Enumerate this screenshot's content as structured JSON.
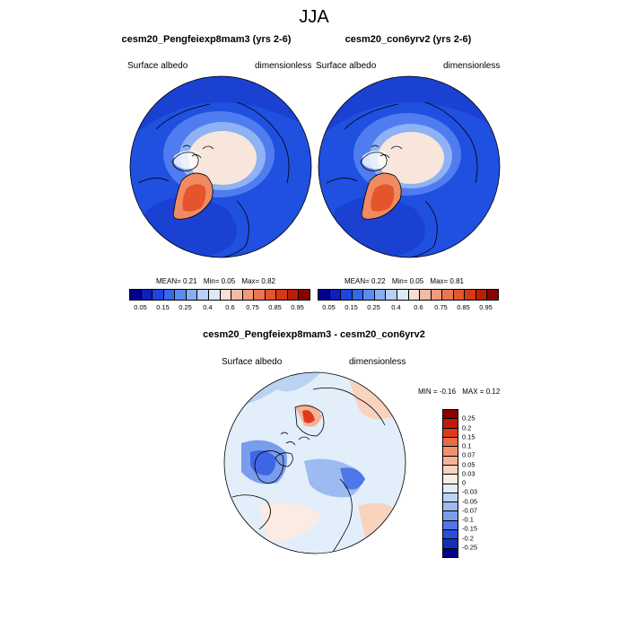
{
  "figure": {
    "title": "JJA",
    "panels": [
      {
        "title": "cesm20_Pengfeiexp8mam3 (yrs 2-6)",
        "variable": "Surface albedo",
        "units": "dimensionless",
        "stats": {
          "mean": "MEAN=   0.21",
          "min": "Min=   0.05",
          "max": "Max=   0.82"
        }
      },
      {
        "title": "cesm20_con6yrv2 (yrs 2-6)",
        "variable": "Surface albedo",
        "units": "dimensionless",
        "stats": {
          "mean": "MEAN=   0.22",
          "min": "Min=   0.05",
          "max": "Max=   0.81"
        }
      },
      {
        "title": "cesm20_Pengfeiexp8mam3 - cesm20_con6yrv2",
        "variable": "Surface albedo",
        "units": "dimensionless",
        "stats": {
          "min": "MIN =  -0.16",
          "max": "MAX =   0.12"
        }
      }
    ],
    "albedo_colorbar": {
      "labels": [
        "0.05",
        "0.15",
        "0.25",
        "0.4",
        "0.6",
        "0.75",
        "0.85",
        "0.95"
      ],
      "colors": [
        "#00008b",
        "#0d1fbf",
        "#1f45e0",
        "#3568ec",
        "#5a8cf0",
        "#86aef2",
        "#b6cff4",
        "#dde9f7",
        "#f9dfd3",
        "#f4bba4",
        "#ef9a7a",
        "#ea7651",
        "#e3552e",
        "#d53816",
        "#b81f08",
        "#8b0000"
      ]
    },
    "diff_colorbar": {
      "labels": [
        "0.25",
        "0.2",
        "0.15",
        "0.1",
        "0.07",
        "0.05",
        "0.03",
        "0",
        "-0.03",
        "-0.05",
        "-0.07",
        "-0.1",
        "-0.15",
        "-0.2",
        "-0.25"
      ],
      "colors": [
        "#8b0000",
        "#c21a0a",
        "#e03a1c",
        "#ea6a47",
        "#f0926d",
        "#f4b395",
        "#f9d3be",
        "#fcebe2",
        "#e0ecf8",
        "#bcd2f3",
        "#9dbaf1",
        "#7a9cef",
        "#4f77e8",
        "#2a4fda",
        "#1330bd",
        "#00008b"
      ]
    }
  }
}
